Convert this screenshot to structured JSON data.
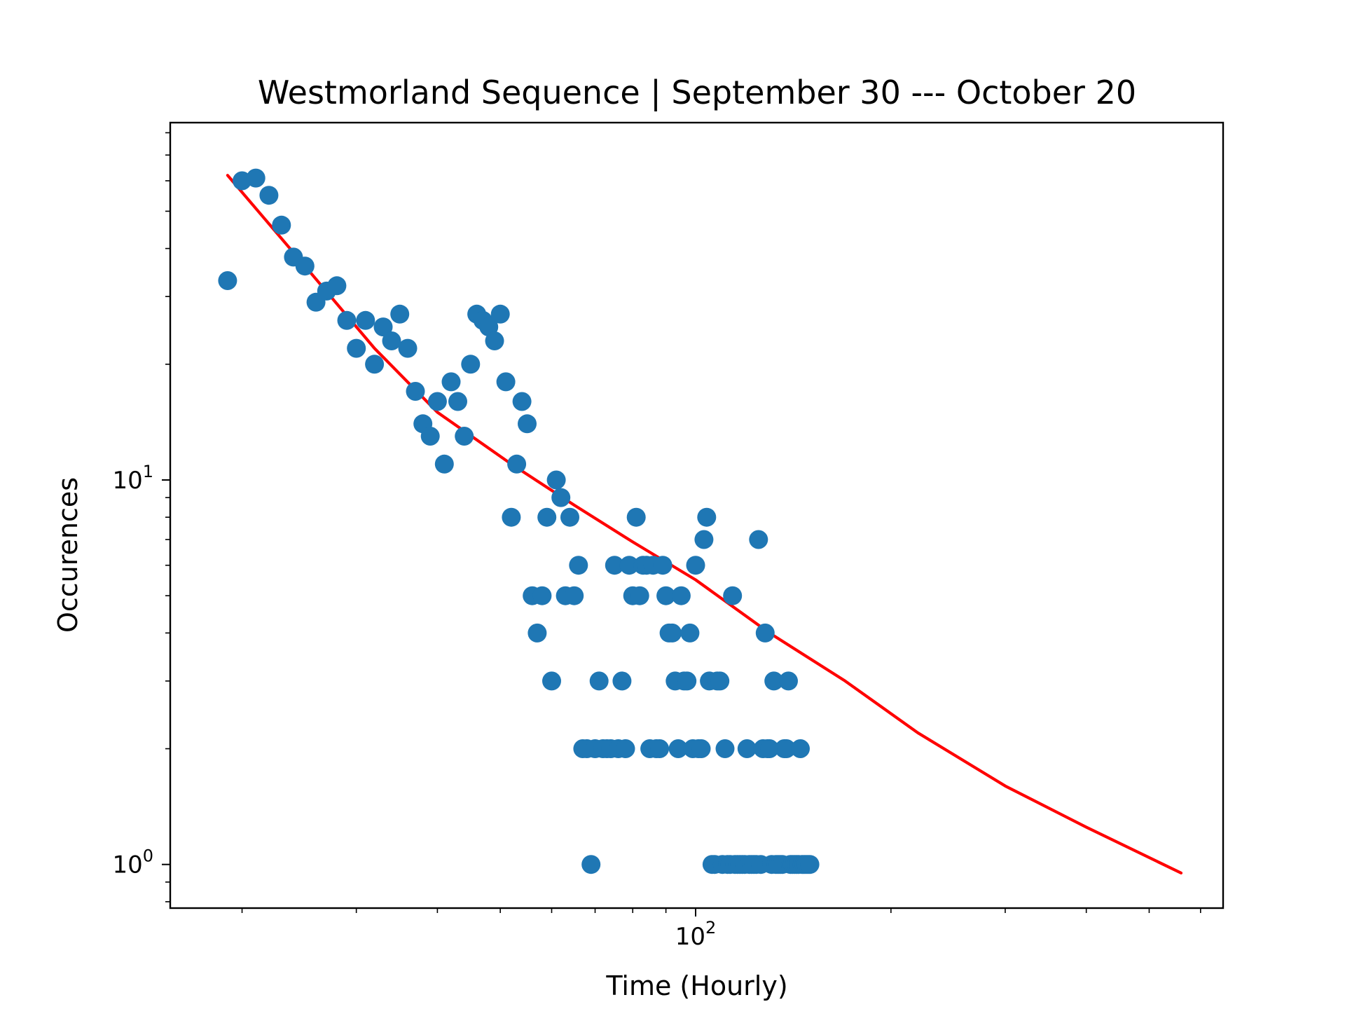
{
  "chart_data": {
    "type": "scatter",
    "title": "Westmorland Sequence | September 30 --- October 20",
    "xlabel": "Time (Hourly)",
    "ylabel": "Occurences",
    "xscale": "log",
    "yscale": "log",
    "xlim": [
      15.5,
      650
    ],
    "ylim": [
      0.77,
      85
    ],
    "grid": false,
    "legend": "none",
    "x_ticks": [
      {
        "value": 100,
        "base": "10",
        "exp": "2"
      }
    ],
    "y_ticks": [
      {
        "value": 1,
        "base": "10",
        "exp": "0"
      },
      {
        "value": 10,
        "base": "10",
        "exp": "1"
      }
    ],
    "marker_color": "#1f77b4",
    "fit_color": "#ff0000",
    "points": {
      "x": [
        19,
        20,
        21,
        22,
        23,
        24,
        25,
        26,
        27,
        28,
        29,
        30,
        31,
        32,
        33,
        34,
        35,
        36,
        37,
        38,
        39,
        40,
        41,
        42,
        43,
        44,
        45,
        46,
        47,
        48,
        49,
        50,
        51,
        52,
        53,
        54,
        55,
        56,
        57,
        58,
        59,
        60,
        61,
        62,
        63,
        64,
        65,
        66,
        67,
        68,
        69,
        70,
        71,
        72,
        73,
        74,
        75,
        76,
        77,
        78,
        79,
        80,
        81,
        82,
        83,
        84,
        85,
        86,
        87,
        88,
        89,
        90,
        91,
        92,
        93,
        94,
        95,
        96,
        97,
        98,
        99,
        100,
        101,
        102,
        103,
        104,
        105,
        106,
        107,
        108,
        109,
        110,
        111,
        112,
        113,
        114,
        115,
        116,
        117,
        118,
        119,
        120,
        121,
        122,
        123,
        124,
        125,
        126,
        127,
        128,
        129,
        130,
        131,
        132,
        133,
        134,
        135,
        136,
        137,
        138,
        139,
        140,
        141,
        142,
        143,
        144,
        145,
        146,
        147,
        148,
        149,
        150
      ],
      "y": [
        33,
        60,
        61,
        55,
        46,
        38,
        36,
        29,
        31,
        32,
        26,
        22,
        26,
        20,
        25,
        23,
        27,
        22,
        17,
        14,
        13,
        16,
        11,
        18,
        16,
        13,
        20,
        27,
        26,
        25,
        23,
        27,
        18,
        8,
        11,
        16,
        14,
        5,
        4,
        5,
        8,
        3,
        10,
        9,
        5,
        8,
        5,
        6,
        2,
        2,
        1,
        2,
        3,
        2,
        2,
        2,
        6,
        2,
        3,
        2,
        6,
        5,
        8,
        5,
        6,
        6,
        2,
        6,
        2,
        2,
        6,
        5,
        4,
        4,
        3,
        2,
        5,
        3,
        3,
        4,
        2,
        6,
        2,
        2,
        7,
        8,
        3,
        1,
        1,
        3,
        3,
        1,
        2,
        1,
        1,
        5,
        1,
        1,
        1,
        1,
        1,
        2,
        1,
        1,
        1,
        1,
        7,
        1,
        2,
        4,
        2,
        2,
        1,
        3,
        1,
        1,
        1,
        1,
        2,
        2,
        3,
        1,
        1,
        1,
        1,
        1,
        2,
        1,
        1,
        1,
        1,
        1
      ]
    },
    "fit": {
      "x_start": 19,
      "x_end": 560,
      "samples": [
        [
          19,
          62
        ],
        [
          25,
          36
        ],
        [
          32,
          22
        ],
        [
          40,
          15
        ],
        [
          52,
          11
        ],
        [
          65,
          8.6
        ],
        [
          80,
          6.9
        ],
        [
          100,
          5.5
        ],
        [
          130,
          4.0
        ],
        [
          170,
          3.0
        ],
        [
          220,
          2.2
        ],
        [
          300,
          1.6
        ],
        [
          400,
          1.25
        ],
        [
          560,
          0.95
        ]
      ]
    }
  }
}
